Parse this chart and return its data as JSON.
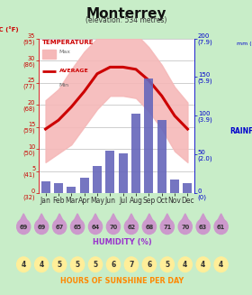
{
  "title": "Monterrey",
  "subtitle": "(elevation: 534 metres)",
  "months": [
    "Jan",
    "Feb",
    "Mar",
    "Apr",
    "May",
    "Jun",
    "Jul",
    "Aug",
    "Sep",
    "Oct",
    "Nov",
    "Dec"
  ],
  "temp_avg": [
    14.5,
    16.5,
    19.5,
    23.0,
    27.0,
    28.5,
    28.5,
    28.0,
    25.5,
    22.0,
    17.5,
    14.5
  ],
  "temp_max": [
    21.0,
    23.5,
    28.0,
    32.0,
    35.0,
    36.0,
    36.5,
    36.0,
    33.0,
    29.0,
    24.0,
    20.5
  ],
  "temp_min": [
    7.0,
    9.0,
    11.0,
    15.0,
    19.0,
    22.0,
    22.0,
    21.5,
    18.5,
    14.5,
    9.5,
    7.0
  ],
  "rainfall": [
    15,
    13,
    8,
    20,
    35,
    55,
    52,
    103,
    148,
    95,
    18,
    13
  ],
  "humidity": [
    69,
    69,
    67,
    65,
    64,
    70,
    62,
    68,
    71,
    70,
    63,
    61
  ],
  "sunshine": [
    4,
    4,
    5,
    5,
    5,
    6,
    7,
    6,
    5,
    4,
    4,
    4
  ],
  "temp_left_ticks": [
    0,
    5,
    10,
    15,
    20,
    25,
    30,
    35
  ],
  "temp_left_f": [
    32,
    41,
    50,
    59,
    68,
    77,
    86,
    95
  ],
  "rain_right_ticks": [
    0,
    50,
    100,
    150,
    200
  ],
  "rain_right_in": [
    "0\n(0)",
    "50\n(2.0)",
    "100\n(3.9)",
    "150\n(5.9)",
    "200\n(7.9)"
  ],
  "bg_color": "#c8edc8",
  "plot_bg": "#ffffff",
  "bar_color": "#6666bb",
  "avg_line_color": "#cc0000",
  "fill_color": "#f5b8b8",
  "temp_label_color": "#cc0000",
  "rain_label_color": "#0000cc",
  "humidity_drop_color": "#cc99cc",
  "humidity_text_color": "#cc3399",
  "humidity_label_color": "#9933cc",
  "sunshine_circle_color": "#ffee99",
  "sunshine_label_color": "#ff8800",
  "grid_color": "#aaaaaa",
  "axis_tick_color": "#cc0000"
}
